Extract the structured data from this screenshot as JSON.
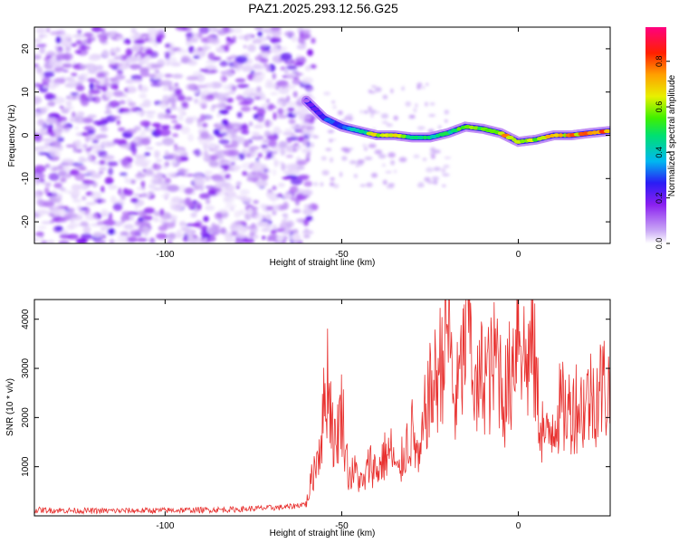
{
  "title": "PAZ1.2025.293.12.56.G25",
  "chart_data": [
    {
      "type": "heatmap",
      "xlabel": "Height of straight line (km)",
      "ylabel": "Frequency (Hz)",
      "xlim": [
        -137,
        26
      ],
      "ylim": [
        -25,
        25
      ],
      "xticks": [
        -100,
        -50,
        0
      ],
      "yticks": [
        -20,
        -10,
        0,
        10,
        20
      ],
      "colorbar": {
        "label": "Normalized spectral amplitude",
        "range": [
          0,
          0.95
        ],
        "ticks": [
          0.0,
          0.2,
          0.4,
          0.6,
          0.8
        ],
        "colormap": "rainbow (white-violet-blue-cyan-green-yellow-red-magenta)"
      },
      "ridge": {
        "description": "signal ridge frequency vs height",
        "x": [
          -60,
          -55,
          -50,
          -45,
          -40,
          -35,
          -30,
          -25,
          -20,
          -15,
          -10,
          -5,
          0,
          5,
          10,
          15,
          20,
          26
        ],
        "y": [
          8,
          4,
          2,
          1,
          0,
          0,
          -0.5,
          -0.5,
          0.5,
          2,
          1.5,
          0.5,
          -1.5,
          -1,
          0,
          0,
          0.5,
          1
        ],
        "amplitude": [
          0.15,
          0.3,
          0.35,
          0.45,
          0.7,
          0.7,
          0.5,
          0.5,
          0.55,
          0.6,
          0.55,
          0.75,
          0.8,
          0.7,
          0.75,
          0.8,
          0.85,
          0.9
        ]
      },
      "noise_region_x": [
        -137,
        -60
      ]
    },
    {
      "type": "line",
      "xlabel": "Height of straight line (km)",
      "ylabel": "SNR (10 * v/v)",
      "xlim": [
        -137,
        26
      ],
      "ylim": [
        0,
        4400
      ],
      "xticks": [
        -100,
        -50,
        0
      ],
      "yticks": [
        1000,
        2000,
        3000,
        4000
      ],
      "color": "#e8312f",
      "series": [
        {
          "x": [
            -137,
            -120,
            -100,
            -80,
            -65,
            -60,
            -58,
            -56,
            -54,
            -52,
            -50,
            -48,
            -46,
            -44,
            -42,
            -40,
            -38,
            -36,
            -34,
            -32,
            -30,
            -28,
            -26,
            -24,
            -22,
            -20,
            -18,
            -16,
            -14,
            -12,
            -10,
            -8,
            -6,
            -4,
            -2,
            0,
            2,
            4,
            6,
            8,
            10,
            12,
            14,
            16,
            18,
            20,
            22,
            24,
            26
          ],
          "y": [
            120,
            100,
            110,
            130,
            180,
            250,
            900,
            1500,
            2900,
            1400,
            2200,
            800,
            900,
            600,
            1100,
            900,
            1200,
            1300,
            800,
            1400,
            1700,
            1000,
            2300,
            2600,
            3100,
            4000,
            2200,
            3000,
            4200,
            2300,
            3000,
            2800,
            3300,
            2400,
            2900,
            4300,
            3000,
            3500,
            2000,
            1500,
            2000,
            2200,
            2100,
            2300,
            2200,
            2400,
            2500,
            2650,
            2500
          ]
        }
      ]
    }
  ]
}
